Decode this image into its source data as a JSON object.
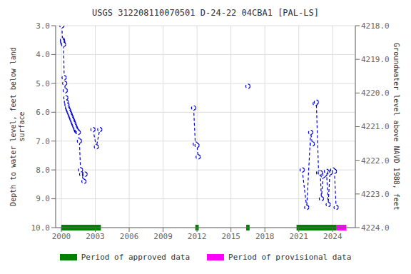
{
  "chart_data": {
    "type": "line",
    "title": "USGS 312208110070501 D-24-22 04CBA1 [PAL-LS]",
    "ylabel": "Depth to water level, feet below land\nsurface",
    "y2label": "Groundwater level above NAVD 1988, feet",
    "xlim": [
      1999.5,
      2026.0
    ],
    "xticks": [
      2000,
      2003,
      2006,
      2009,
      2012,
      2015,
      2018,
      2021,
      2024
    ],
    "ylim": [
      10.0,
      3.0
    ],
    "yticks": [
      {
        "value": 3.0,
        "label": "3.0"
      },
      {
        "value": 4.0,
        "label": "4.0"
      },
      {
        "value": 5.0,
        "label": "5.0"
      },
      {
        "value": 6.0,
        "label": "6.0"
      },
      {
        "value": 7.0,
        "label": "7.0"
      },
      {
        "value": 8.0,
        "label": "8.0"
      },
      {
        "value": 9.0,
        "label": "9.0"
      },
      {
        "value": 10.0,
        "label": "10.0"
      }
    ],
    "y2lim": [
      4224.0,
      4218.0
    ],
    "y2ticks": [
      {
        "value": 4224.0,
        "label": "4224.0"
      },
      {
        "value": 4223.0,
        "label": "4223.0"
      },
      {
        "value": 4222.0,
        "label": "4222.0"
      },
      {
        "value": 4221.0,
        "label": "4221.0"
      },
      {
        "value": 4220.0,
        "label": "4220.0"
      },
      {
        "value": 4219.0,
        "label": "4219.0"
      },
      {
        "value": 4218.0,
        "label": "4218.0"
      }
    ],
    "grid": true,
    "color": "#0000cc",
    "marker": "circle",
    "line_style": "dashed",
    "series": [
      {
        "x": [
          2000.05,
          2000.1,
          2000.12,
          2000.14,
          2000.2,
          2000.25,
          2000.3,
          2000.35,
          2000.4,
          2000.45,
          2000.5,
          2000.55,
          2000.6,
          2000.65,
          2000.7,
          2000.75,
          2000.8,
          2000.85,
          2000.9,
          2000.95,
          2001.0,
          2001.05,
          2001.1,
          2001.15,
          2001.2,
          2001.25,
          2001.3,
          2001.35,
          2001.4,
          2001.45,
          2001.5,
          2001.6,
          2001.7,
          2001.8,
          2002.0,
          2002.05,
          2002.1
        ],
        "values": [
          3.0,
          3.5,
          3.55,
          3.6,
          3.65,
          4.8,
          5.0,
          5.25,
          5.5,
          5.65,
          5.75,
          5.85,
          5.9,
          5.95,
          6.0,
          6.05,
          6.1,
          6.15,
          6.2,
          6.25,
          6.3,
          6.35,
          6.4,
          6.45,
          6.5,
          6.55,
          6.6,
          6.65,
          6.65,
          6.7,
          6.7,
          7.0,
          8.0,
          8.15,
          8.4,
          8.15,
          8.15
        ]
      },
      {
        "x": [
          2002.8,
          2003.1,
          2003.4
        ],
        "values": [
          6.6,
          7.2,
          6.6
        ]
      },
      {
        "x": [
          2011.7,
          2011.85,
          2012.0,
          2012.1
        ],
        "values": [
          5.85,
          7.1,
          7.15,
          7.55
        ]
      },
      {
        "x": [
          2016.5
        ],
        "values": [
          5.1
        ]
      },
      {
        "x": [
          2021.3,
          2021.7,
          2022.05,
          2022.2
        ],
        "values": [
          8.0,
          9.3,
          6.7,
          7.1
        ]
      },
      {
        "x": [
          2022.45,
          2022.55,
          2022.75,
          2022.9,
          2023.0,
          2023.15,
          2023.3,
          2023.45,
          2023.6,
          2023.75,
          2023.9,
          2024.0,
          2024.15,
          2024.3
        ],
        "values": [
          5.7,
          5.65,
          8.1,
          8.1,
          9.0,
          8.2,
          8.15,
          8.05,
          9.2,
          8.1,
          8.05,
          8.0,
          8.05,
          9.3
        ]
      }
    ],
    "periods": [
      {
        "name": "Period of approved data",
        "color": "#008000",
        "ranges": [
          [
            2000.0,
            2003.5
          ],
          [
            2011.85,
            2012.15
          ],
          [
            2016.35,
            2016.65
          ],
          [
            2020.8,
            2024.3
          ]
        ]
      },
      {
        "name": "Period of provisional data",
        "color": "#ff00ff",
        "ranges": [
          [
            2024.3,
            2025.2
          ]
        ]
      }
    ]
  }
}
